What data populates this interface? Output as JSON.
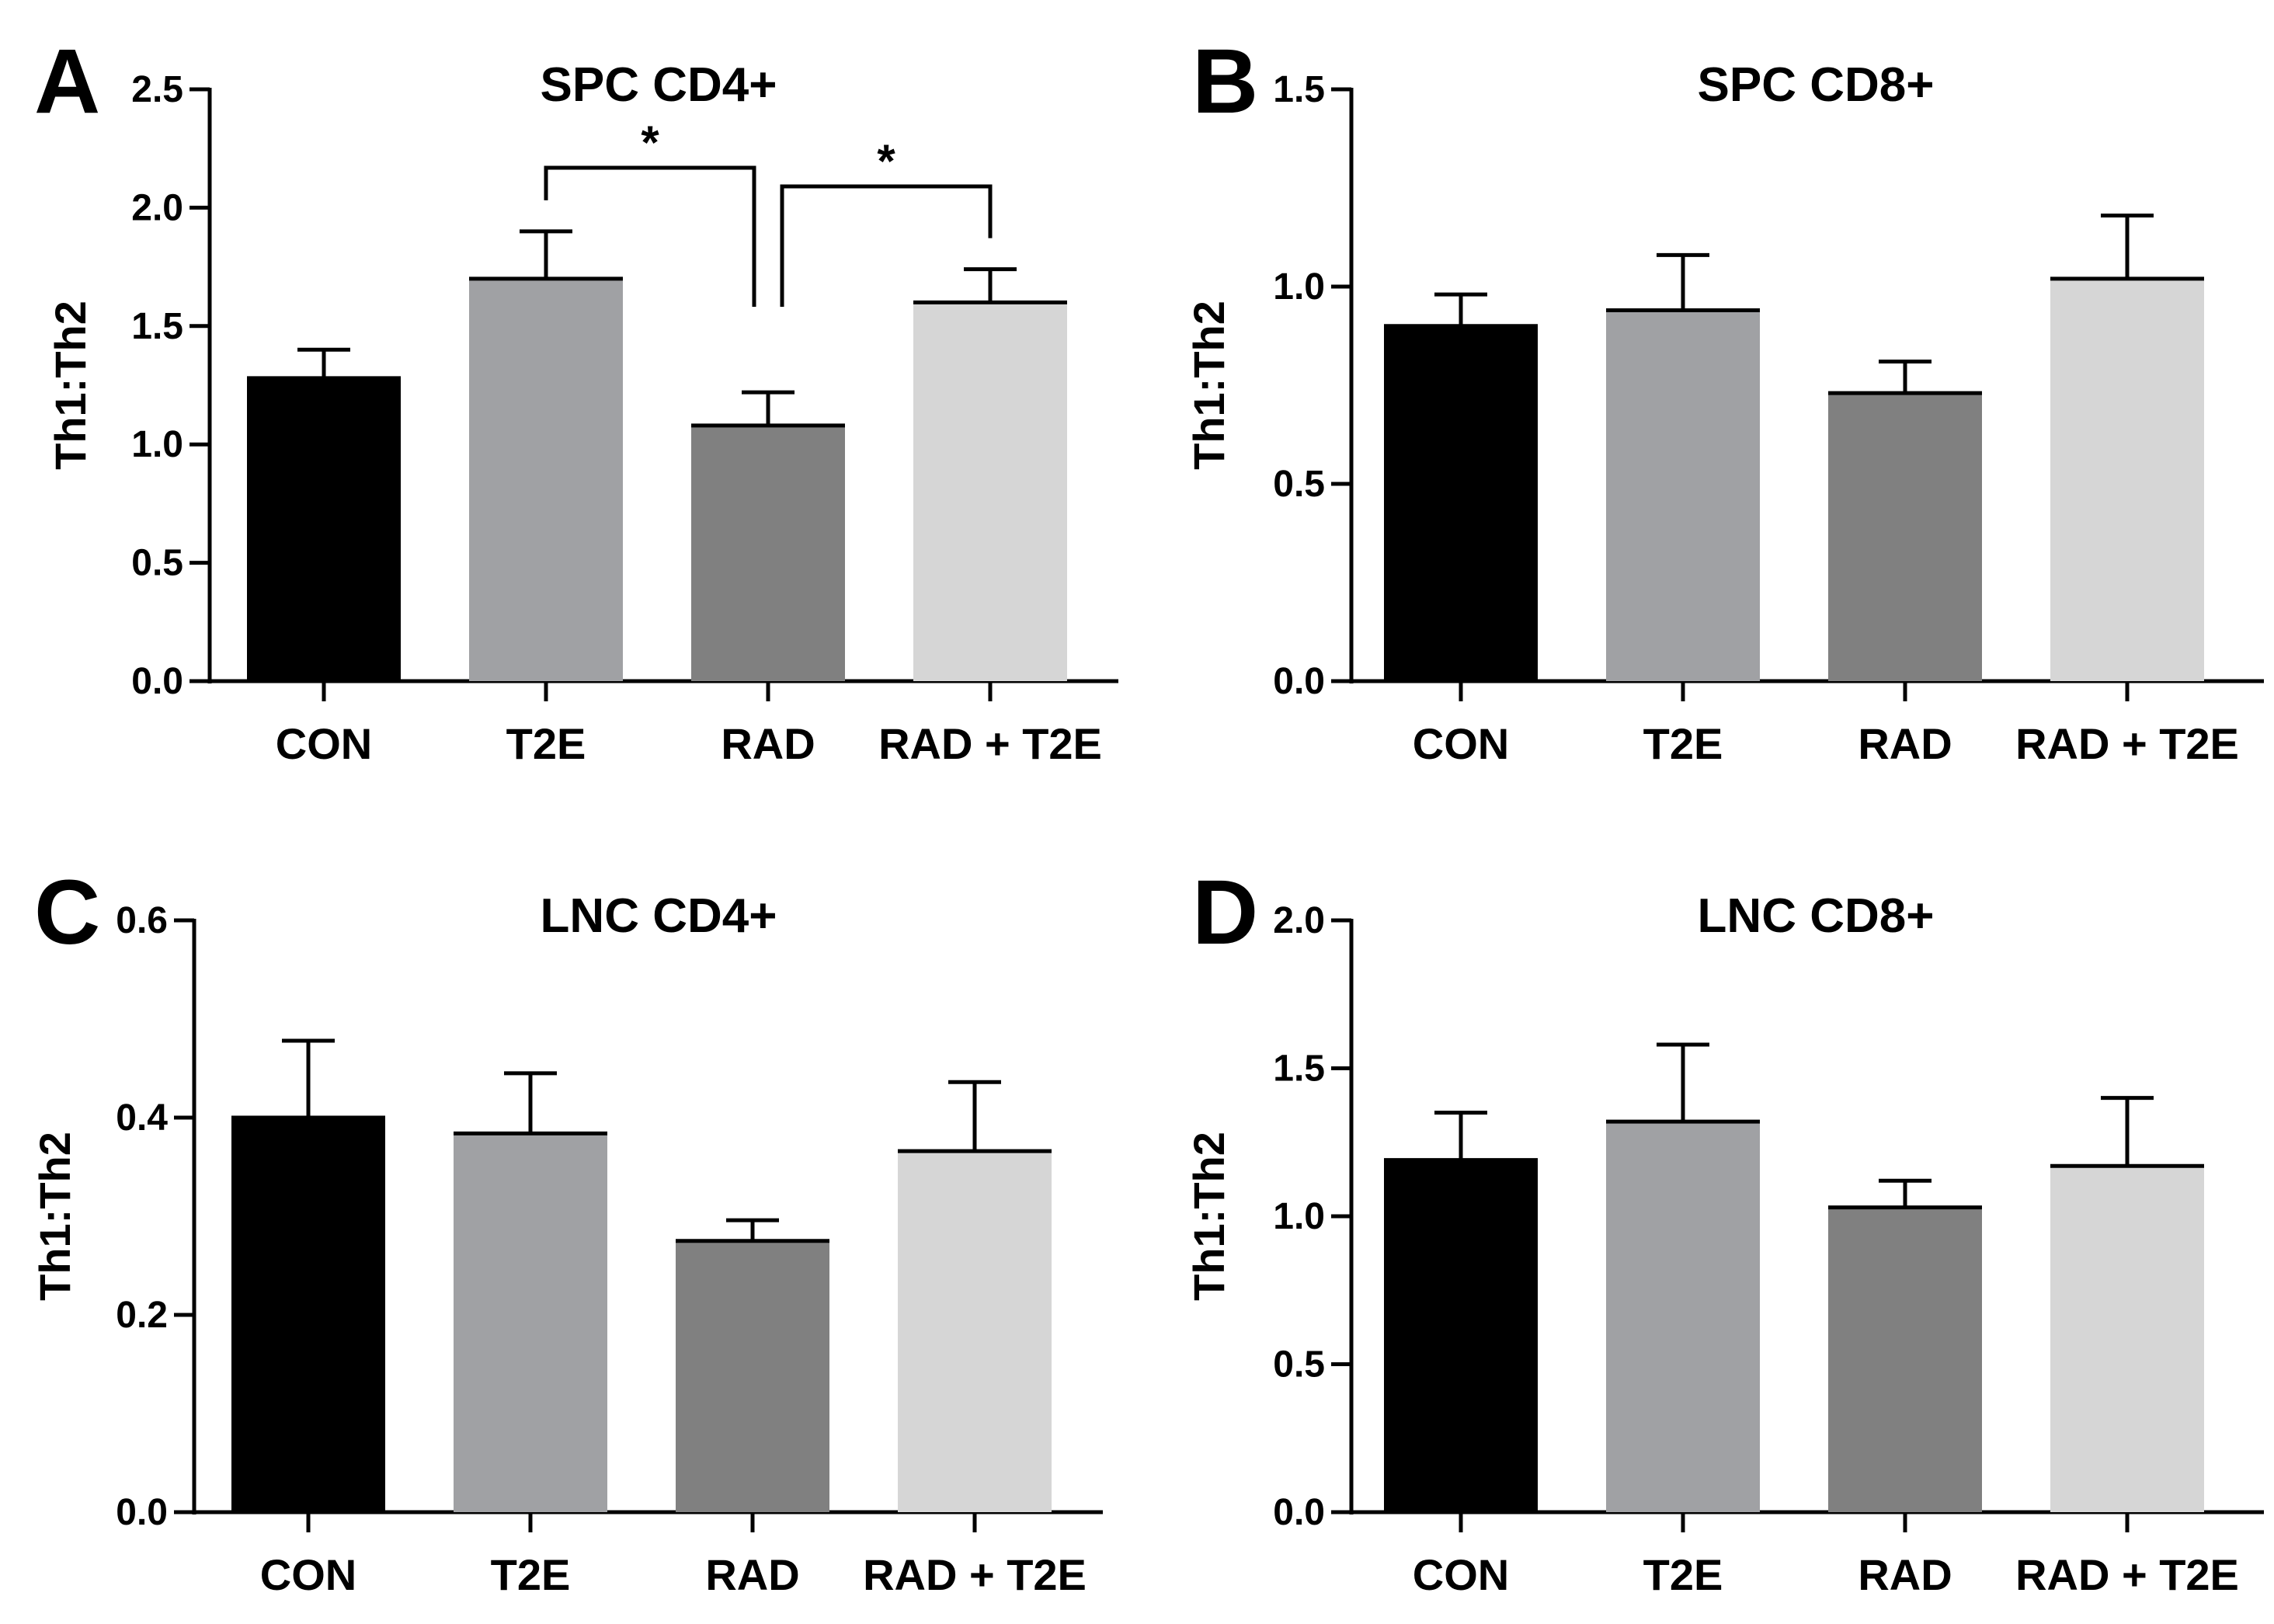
{
  "colors": {
    "CON": "#000000",
    "T2E": "#a0a1a4",
    "RAD": "#808080",
    "RAD + T2E": "#d6d6d6",
    "axis": "#000000"
  },
  "chart_data": [
    {
      "panel": "A",
      "type": "bar",
      "title": "SPC CD4+",
      "xlabel": "",
      "ylabel": "Th1:Th2",
      "categories": [
        "CON",
        "T2E",
        "RAD",
        "RAD + T2E"
      ],
      "values": [
        1.28,
        1.7,
        1.08,
        1.6
      ],
      "errors": [
        0.12,
        0.2,
        0.14,
        0.14
      ],
      "ylim": [
        0,
        2.5
      ],
      "yticks": [
        0,
        0.5,
        1.0,
        1.5,
        2.0,
        2.5
      ],
      "ytick_labels": [
        "0.0",
        "0.5",
        "1.0",
        "1.5",
        "2.0",
        "2.5"
      ],
      "significance": [
        {
          "from": 1,
          "to": 2,
          "label": "*"
        },
        {
          "from": 2,
          "to": 3,
          "label": "*"
        }
      ]
    },
    {
      "panel": "B",
      "type": "bar",
      "title": "SPC CD8+",
      "xlabel": "",
      "ylabel": "Th1:Th2",
      "categories": [
        "CON",
        "T2E",
        "RAD",
        "RAD + T2E"
      ],
      "values": [
        0.9,
        0.94,
        0.73,
        1.02
      ],
      "errors": [
        0.08,
        0.14,
        0.08,
        0.16
      ],
      "ylim": [
        0,
        1.5
      ],
      "yticks": [
        0,
        0.5,
        1.0,
        1.5
      ],
      "ytick_labels": [
        "0.0",
        "0.5",
        "1.0",
        "1.5"
      ],
      "significance": []
    },
    {
      "panel": "C",
      "type": "bar",
      "title": "LNC CD4+",
      "xlabel": "",
      "ylabel": "Th1:Th2",
      "categories": [
        "CON",
        "T2E",
        "RAD",
        "RAD + T2E"
      ],
      "values": [
        0.4,
        0.384,
        0.275,
        0.366
      ],
      "errors": [
        0.078,
        0.061,
        0.021,
        0.07
      ],
      "ylim": [
        0,
        0.6
      ],
      "yticks": [
        0,
        0.2,
        0.4,
        0.6
      ],
      "ytick_labels": [
        "0.0",
        "0.2",
        "0.4",
        "0.6"
      ],
      "significance": []
    },
    {
      "panel": "D",
      "type": "bar",
      "title": "LNC CD8+",
      "xlabel": "",
      "ylabel": "Th1:Th2",
      "categories": [
        "CON",
        "T2E",
        "RAD",
        "RAD + T2E"
      ],
      "values": [
        1.19,
        1.32,
        1.03,
        1.17
      ],
      "errors": [
        0.16,
        0.26,
        0.09,
        0.23
      ],
      "ylim": [
        0,
        2.0
      ],
      "yticks": [
        0,
        0.5,
        1.0,
        1.5,
        2.0
      ],
      "ytick_labels": [
        "0.0",
        "0.5",
        "1.0",
        "1.5",
        "2.0"
      ],
      "significance": []
    }
  ]
}
